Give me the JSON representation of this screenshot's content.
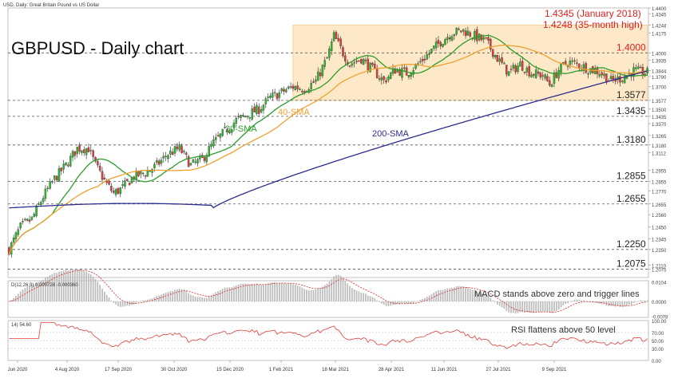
{
  "header": {
    "symbol_line": "USD, Daily: Great Britain Pound vs US Dollar",
    "title": "GBPUSD - Daily chart"
  },
  "annotations": {
    "top1": "1.4345 (January 2018)",
    "top2": "1.4248 (35-month high)",
    "sma20": "20-SMA",
    "sma40": "40-SMA",
    "sma200": "200-SMA",
    "macd_note": "MACD stands above zero and trigger lines",
    "rsi_note": "RSI flattens above 50 level"
  },
  "colors": {
    "bull": "#2db82d",
    "bear": "#e03c3c",
    "sma20": "#2a9d2a",
    "sma40": "#f0a030",
    "sma200": "#2c2c8c",
    "zone": "#fde8c8",
    "level_text": "#e0201e"
  },
  "chart_data": [
    {
      "type": "candlestick",
      "title": "GBPUSD - Daily chart",
      "ylim": [
        1.2,
        1.44
      ],
      "levels": [
        {
          "value": 1.4,
          "label": "1.4000",
          "color": "red"
        },
        {
          "value": 1.3577,
          "label": "1.3577"
        },
        {
          "value": 1.3435,
          "label": "1.3435"
        },
        {
          "value": 1.318,
          "label": "1.3180"
        },
        {
          "value": 1.2855,
          "label": "1.2855"
        },
        {
          "value": 1.2655,
          "label": "1.2655"
        },
        {
          "value": 1.225,
          "label": "1.2250"
        },
        {
          "value": 1.2075,
          "label": "1.2075"
        }
      ],
      "right_axis_ticks": [
        "1.4400",
        "1.4345",
        "1.4248",
        "1.4175",
        "1.4000",
        "1.3935",
        "1.3844",
        "1.3790",
        "1.3700",
        "1.3577",
        "1.3500",
        "1.3435",
        "1.3370",
        "1.3265",
        "1.3180",
        "1.3112",
        "1.2955",
        "1.2855",
        "1.2770",
        "1.2655",
        "1.2560",
        "1.2450",
        "1.2345",
        "1.2250",
        "1.2110",
        "1.2075"
      ],
      "x_ticks": [
        "Jun 2020",
        "4 Aug 2020",
        "17 Sep 2020",
        "30 Oct 2020",
        "15 Dec 2020",
        "1 Feb 2021",
        "18 Mar 2021",
        "28 Apr 2021",
        "11 Jun 2021",
        "27 Jul 2021",
        "9 Sep 2021"
      ],
      "anchors": [
        [
          0,
          1.225
        ],
        [
          5,
          1.245
        ],
        [
          10,
          1.252
        ],
        [
          15,
          1.272
        ],
        [
          20,
          1.288
        ],
        [
          25,
          1.3
        ],
        [
          30,
          1.315
        ],
        [
          35,
          1.315
        ],
        [
          38,
          1.3
        ],
        [
          43,
          1.283
        ],
        [
          46,
          1.275
        ],
        [
          50,
          1.28
        ],
        [
          55,
          1.29
        ],
        [
          60,
          1.293
        ],
        [
          65,
          1.3
        ],
        [
          70,
          1.31
        ],
        [
          75,
          1.315
        ],
        [
          80,
          1.3
        ],
        [
          85,
          1.305
        ],
        [
          90,
          1.32
        ],
        [
          95,
          1.33
        ],
        [
          100,
          1.34
        ],
        [
          105,
          1.345
        ],
        [
          110,
          1.35
        ],
        [
          115,
          1.36
        ],
        [
          120,
          1.365
        ],
        [
          125,
          1.37
        ],
        [
          130,
          1.368
        ],
        [
          135,
          1.375
        ],
        [
          140,
          1.395
        ],
        [
          143,
          1.415
        ],
        [
          147,
          1.4
        ],
        [
          150,
          1.39
        ],
        [
          155,
          1.395
        ],
        [
          160,
          1.385
        ],
        [
          165,
          1.375
        ],
        [
          170,
          1.385
        ],
        [
          175,
          1.382
        ],
        [
          180,
          1.39
        ],
        [
          185,
          1.4
        ],
        [
          190,
          1.41
        ],
        [
          195,
          1.418
        ],
        [
          200,
          1.42
        ],
        [
          205,
          1.415
        ],
        [
          210,
          1.41
        ],
        [
          215,
          1.395
        ],
        [
          220,
          1.382
        ],
        [
          225,
          1.39
        ],
        [
          230,
          1.382
        ],
        [
          235,
          1.38
        ],
        [
          238,
          1.372
        ],
        [
          242,
          1.385
        ],
        [
          246,
          1.392
        ],
        [
          250,
          1.39
        ],
        [
          255,
          1.386
        ],
        [
          260,
          1.383
        ],
        [
          265,
          1.375
        ],
        [
          270,
          1.378
        ],
        [
          275,
          1.384
        ],
        [
          281,
          1.382
        ]
      ],
      "zone": {
        "from_index": 125,
        "to_index": 281,
        "low": 1.3577,
        "high": 1.4248
      },
      "sma_labels": [
        "20-SMA",
        "40-SMA",
        "200-SMA"
      ]
    },
    {
      "type": "line",
      "name": "MACD",
      "legend": "D(12,26,9) 0.000728 -0.000360",
      "right_ticks": [
        "0.0104",
        "0.0000",
        "-0.0078"
      ],
      "ylim": [
        -0.0085,
        0.011
      ]
    },
    {
      "type": "line",
      "name": "RSI",
      "legend": "14) 54.60",
      "right_ticks": [
        "100.00",
        "70.00",
        "50.00",
        "30.00",
        "0.00"
      ],
      "ylim": [
        0,
        100
      ]
    }
  ]
}
